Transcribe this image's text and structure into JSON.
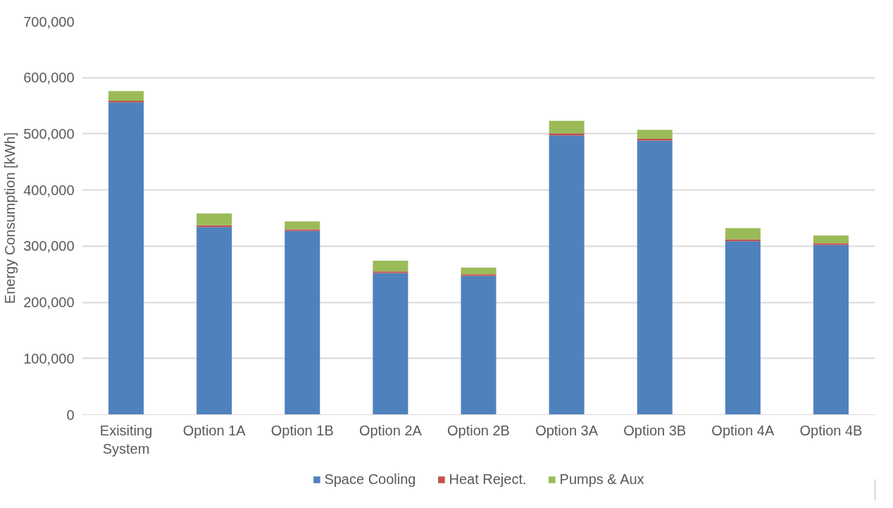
{
  "chart_data": {
    "type": "bar",
    "stacked": true,
    "ylabel": "Energy Consumption [kWh]",
    "categories": [
      "Exisiting System",
      "Option 1A",
      "Option 1B",
      "Option 2A",
      "Option 2B",
      "Option 3A",
      "Option 3B",
      "Option 4A",
      "Option 4B"
    ],
    "series": [
      {
        "name": "Space Cooling",
        "color": "#4f81bd",
        "values": [
          556000,
          334000,
          327000,
          252000,
          247000,
          497000,
          488000,
          309000,
          302000
        ]
      },
      {
        "name": "Heat Reject.",
        "color": "#c0504d",
        "values": [
          3000,
          3000,
          3000,
          3000,
          3000,
          4000,
          3000,
          3000,
          3000
        ]
      },
      {
        "name": "Pumps & Aux",
        "color": "#9bbb59",
        "values": [
          17000,
          21000,
          14000,
          19000,
          12000,
          22000,
          16000,
          20000,
          14000
        ]
      }
    ],
    "ylim": [
      0,
      700000
    ],
    "yticks": [
      {
        "value": 0,
        "label": "0"
      },
      {
        "value": 100000,
        "label": "100,000"
      },
      {
        "value": 200000,
        "label": "200,000"
      },
      {
        "value": 300000,
        "label": "300,000"
      },
      {
        "value": 400000,
        "label": "400,000"
      },
      {
        "value": 500000,
        "label": "500,000"
      },
      {
        "value": 600000,
        "label": "600,000"
      },
      {
        "value": 700000,
        "label": "700,000"
      }
    ],
    "grid": "y",
    "legend": "bottom"
  }
}
